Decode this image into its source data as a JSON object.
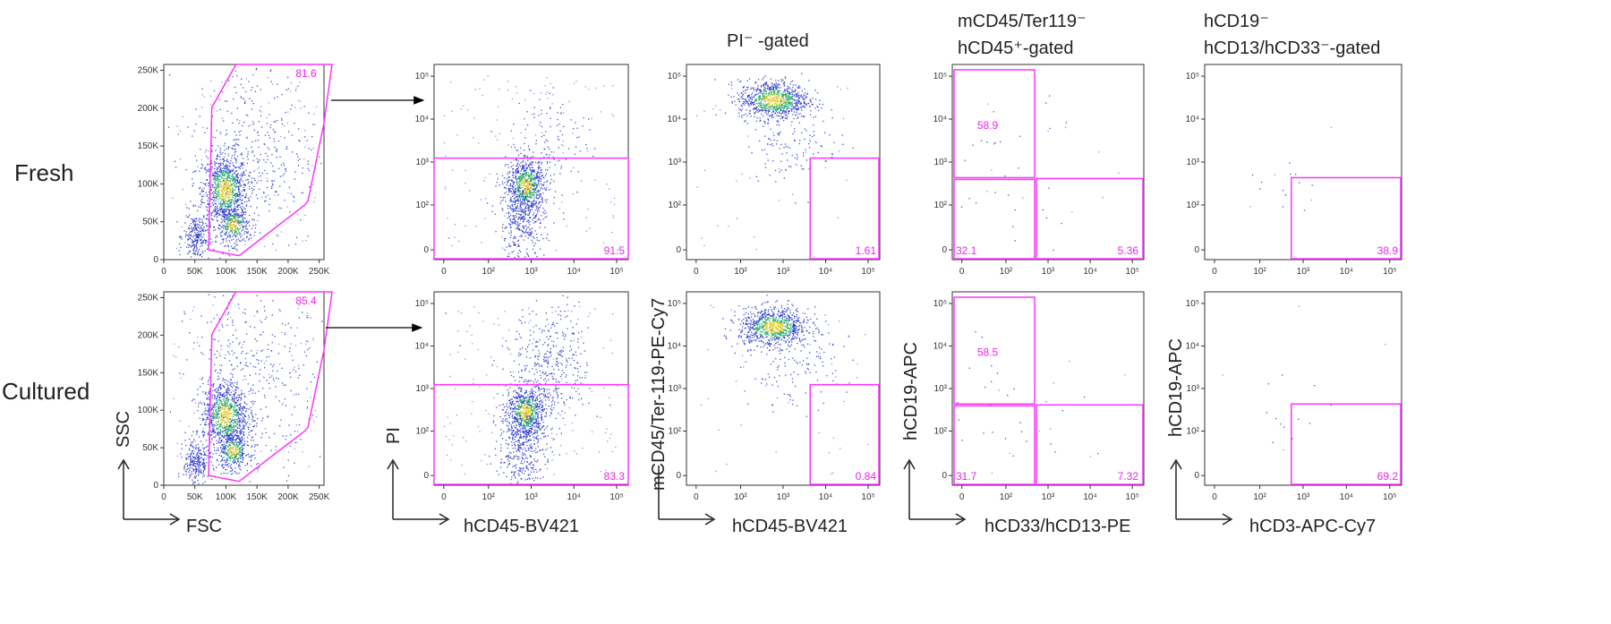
{
  "row_labels": {
    "fresh": "Fresh",
    "cultured": "Cultured"
  },
  "column_titles": {
    "col3": "PI⁻ -gated",
    "col4_line1": "mCD45/Ter119⁻",
    "col4_line2": "hCD45⁺-gated",
    "col5_line1": "hCD19⁻",
    "col5_line2": "hCD13/hCD33⁻-gated"
  },
  "axis_labels": {
    "p1_y": "SSC",
    "p1_x": "FSC",
    "p2_y": "PI",
    "p2_x": "hCD45-BV421",
    "p3_y": "mCD45/Ter-119-PE-Cy7",
    "p3_x": "hCD45-BV421",
    "p4_y": "hCD19-APC",
    "p4_x": "hCD33/hCD13-PE",
    "p5_y": "hCD19-APC",
    "p5_x": "hCD3-APC-Cy7"
  },
  "ticks": {
    "linear": [
      "0",
      "50K",
      "100K",
      "150K",
      "200K",
      "250K"
    ],
    "log": [
      "0",
      "10²",
      "10³",
      "10⁴",
      "10⁵"
    ]
  },
  "gate_values": {
    "fresh": {
      "p1": "81.6",
      "p2": "91.5",
      "p3": "1.61",
      "p4_ul": "58.9",
      "p4_ll": "32.1",
      "p4_lr": "5.36",
      "p5": "38.9"
    },
    "cultured": {
      "p1": "85.4",
      "p2": "83.3",
      "p3": "0.84",
      "p4_ul": "58.5",
      "p4_ll": "31.7",
      "p4_lr": "7.32",
      "p5": "69.2"
    }
  },
  "colors": {
    "gate": "#ff33ff",
    "density_low": "#2233cc",
    "density_mid": "#22aa66",
    "density_high": "#ddcc22"
  }
}
